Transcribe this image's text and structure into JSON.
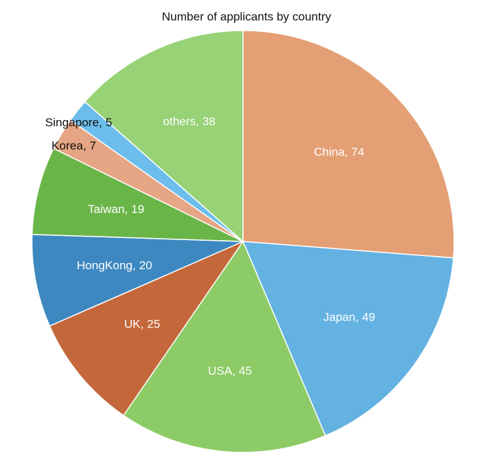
{
  "chart_data": {
    "type": "pie",
    "title": "Number of applicants by country",
    "values": [
      74,
      49,
      45,
      25,
      20,
      19,
      7,
      5,
      38
    ],
    "value_labels": [
      "China, 74",
      "Japan, 49",
      "USA, 45",
      "UK, 25",
      "HongKong, 20",
      "Taiwan, 19",
      "Korea, 7",
      "Singapore, 5",
      "others, 38"
    ],
    "colors": [
      "#e49f74",
      "#64b2e2",
      "#8ccb66",
      "#c4673a",
      "#3d88c0",
      "#6ab548",
      "#e6a584",
      "#6cbdec",
      "#97d276"
    ]
  }
}
